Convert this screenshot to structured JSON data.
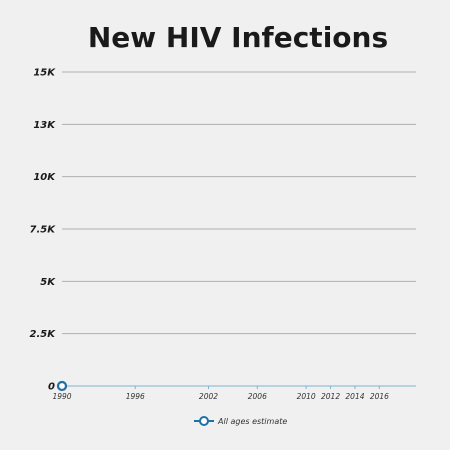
{
  "chart_data": {
    "type": "line",
    "title": "New HIV Infections",
    "xlabel": "",
    "ylabel": "",
    "ylim": [
      0,
      15000
    ],
    "xlim": [
      1990,
      2019
    ],
    "y_ticks": [
      {
        "value": 0,
        "label": "0"
      },
      {
        "value": 2500,
        "label": "2.5K"
      },
      {
        "value": 5000,
        "label": "5K"
      },
      {
        "value": 7500,
        "label": "7.5K"
      },
      {
        "value": 10000,
        "label": "10K"
      },
      {
        "value": 12500,
        "label": "13K"
      },
      {
        "value": 15000,
        "label": "15K"
      }
    ],
    "x_ticks": [
      {
        "value": 1990,
        "label": "1990"
      },
      {
        "value": 1996,
        "label": "1996"
      },
      {
        "value": 2002,
        "label": "2002"
      },
      {
        "value": 2006,
        "label": "2006"
      },
      {
        "value": 2010,
        "label": "2010"
      },
      {
        "value": 2012,
        "label": "2012"
      },
      {
        "value": 2014,
        "label": "2014"
      },
      {
        "value": 2016,
        "label": "2016"
      }
    ],
    "series": [
      {
        "name": "All ages estimate",
        "color": "#1f6fa8",
        "points": [
          {
            "x": 1990,
            "y": 0
          }
        ]
      }
    ],
    "grid": true,
    "legend_position": "bottom-center"
  }
}
